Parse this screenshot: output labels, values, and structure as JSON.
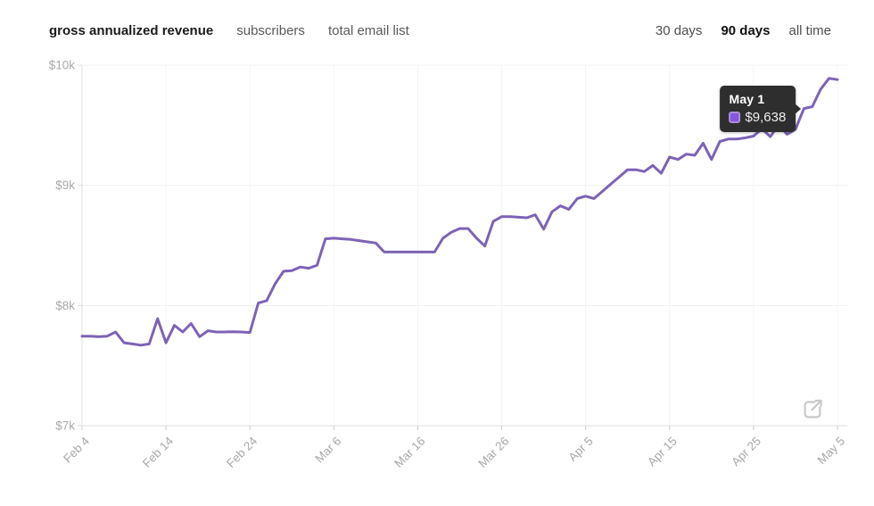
{
  "header": {
    "tabs": [
      {
        "label": "gross annualized revenue",
        "active": true
      },
      {
        "label": "subscribers",
        "active": false
      },
      {
        "label": "total email list",
        "active": false
      }
    ],
    "ranges": [
      {
        "label": "30 days",
        "active": false
      },
      {
        "label": "90 days",
        "active": true
      },
      {
        "label": "all time",
        "active": false
      }
    ]
  },
  "chart_data": {
    "type": "line",
    "title": "",
    "xlabel": "",
    "ylabel": "",
    "grid": true,
    "legend": false,
    "line_color": "#7d63b5",
    "ylim": [
      7000,
      10000
    ],
    "y_ticks": [
      {
        "value": 7000,
        "label": "$7k"
      },
      {
        "value": 8000,
        "label": "$8k"
      },
      {
        "value": 9000,
        "label": "$9k"
      },
      {
        "value": 10000,
        "label": "$10k"
      }
    ],
    "x_tick_labels": [
      "Feb 4",
      "Feb 14",
      "Feb 24",
      "Mar 6",
      "Mar 16",
      "Mar 26",
      "Apr 5",
      "Apr 15",
      "Apr 25",
      "May 5"
    ],
    "x": [
      "Feb 4",
      "Feb 5",
      "Feb 6",
      "Feb 7",
      "Feb 8",
      "Feb 9",
      "Feb 10",
      "Feb 11",
      "Feb 12",
      "Feb 13",
      "Feb 14",
      "Feb 15",
      "Feb 16",
      "Feb 17",
      "Feb 18",
      "Feb 19",
      "Feb 20",
      "Feb 21",
      "Feb 22",
      "Feb 23",
      "Feb 24",
      "Feb 25",
      "Feb 26",
      "Feb 27",
      "Feb 28",
      "Mar 1",
      "Mar 2",
      "Mar 3",
      "Mar 4",
      "Mar 5",
      "Mar 6",
      "Mar 7",
      "Mar 8",
      "Mar 9",
      "Mar 10",
      "Mar 11",
      "Mar 12",
      "Mar 13",
      "Mar 14",
      "Mar 15",
      "Mar 16",
      "Mar 17",
      "Mar 18",
      "Mar 19",
      "Mar 20",
      "Mar 21",
      "Mar 22",
      "Mar 23",
      "Mar 24",
      "Mar 25",
      "Mar 26",
      "Mar 27",
      "Mar 28",
      "Mar 29",
      "Mar 30",
      "Mar 31",
      "Apr 1",
      "Apr 2",
      "Apr 3",
      "Apr 4",
      "Apr 5",
      "Apr 6",
      "Apr 7",
      "Apr 8",
      "Apr 9",
      "Apr 10",
      "Apr 11",
      "Apr 12",
      "Apr 13",
      "Apr 14",
      "Apr 15",
      "Apr 16",
      "Apr 17",
      "Apr 18",
      "Apr 19",
      "Apr 20",
      "Apr 21",
      "Apr 22",
      "Apr 23",
      "Apr 24",
      "Apr 25",
      "Apr 26",
      "Apr 27",
      "Apr 28",
      "Apr 29",
      "Apr 30",
      "May 1",
      "May 2",
      "May 3",
      "May 4",
      "May 5"
    ],
    "series": [
      {
        "name": "gross annualized revenue",
        "values": [
          7745,
          7745,
          7740,
          7745,
          7780,
          7690,
          7680,
          7670,
          7680,
          7890,
          7690,
          7835,
          7780,
          7850,
          7740,
          7790,
          7780,
          7780,
          7782,
          7780,
          7775,
          8020,
          8040,
          8180,
          8285,
          8290,
          8320,
          8310,
          8335,
          8555,
          8560,
          8555,
          8550,
          8540,
          8530,
          8520,
          8445,
          8445,
          8445,
          8445,
          8445,
          8445,
          8445,
          8560,
          8610,
          8640,
          8640,
          8560,
          8495,
          8700,
          8740,
          8740,
          8735,
          8730,
          8755,
          8635,
          8780,
          8830,
          8800,
          8890,
          8910,
          8890,
          8950,
          9010,
          9070,
          9130,
          9130,
          9115,
          9165,
          9100,
          9235,
          9215,
          9260,
          9250,
          9350,
          9215,
          9365,
          9385,
          9385,
          9395,
          9410,
          9470,
          9405,
          9500,
          9425,
          9465,
          9638,
          9655,
          9800,
          9890,
          9880
        ]
      }
    ]
  },
  "tooltip": {
    "date": "May 1",
    "value": "$9,638",
    "bg_color": "#2e2e2e",
    "swatch_fill": "#8655e0",
    "swatch_border": "#a98fd9"
  },
  "colors": {
    "grid_line": "#f1f1f1",
    "axis_line": "#e0e0e0",
    "tick_label": "#a9a9a9",
    "icon_gray": "#c9c9c9"
  },
  "icons": {
    "export": "external-link-icon"
  }
}
